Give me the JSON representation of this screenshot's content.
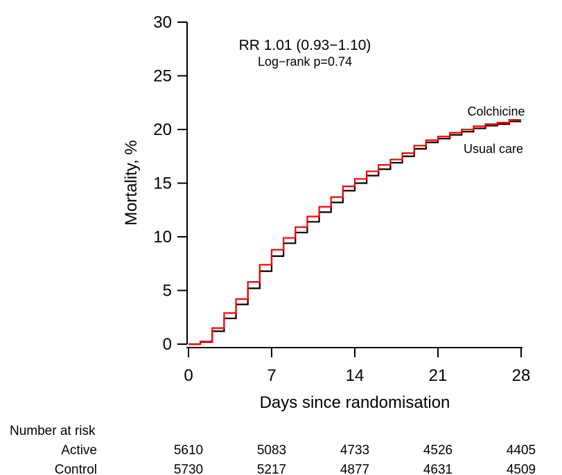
{
  "figure": {
    "background": "#ffffff",
    "accent_red": "#ff0000",
    "axis_color": "#000000"
  },
  "chart_data": {
    "type": "line",
    "subtype": "kaplan-meier-step",
    "title": "",
    "xlabel": "Days since randomisation",
    "ylabel": "Mortality, %",
    "xlim": [
      0,
      28
    ],
    "ylim": [
      0,
      30
    ],
    "x_ticks": [
      "0",
      "7",
      "14",
      "21",
      "28"
    ],
    "x_tick_values": [
      0,
      7,
      14,
      21,
      28
    ],
    "y_ticks": [
      "0",
      "5",
      "10",
      "15",
      "20",
      "25",
      "30"
    ],
    "y_tick_values": [
      0,
      5,
      10,
      15,
      20,
      25,
      30
    ],
    "grid": "off",
    "legend_position": "inline-right-of-curves",
    "annotations": {
      "line1": "RR 1.01 (0.93−1.10)",
      "line2": "Log−rank p=0.74"
    },
    "x": [
      0,
      1,
      2,
      3,
      4,
      5,
      6,
      7,
      8,
      9,
      10,
      11,
      12,
      13,
      14,
      15,
      16,
      17,
      18,
      19,
      20,
      21,
      22,
      23,
      24,
      25,
      26,
      27,
      28
    ],
    "series": [
      {
        "name": "Colchicine",
        "label": "Colchicine",
        "color": "#ff0000",
        "values": [
          0,
          0.25,
          1.5,
          2.9,
          4.2,
          5.8,
          7.4,
          8.8,
          9.9,
          10.9,
          11.9,
          12.8,
          13.7,
          14.7,
          15.4,
          16.1,
          16.7,
          17.2,
          17.8,
          18.5,
          19.0,
          19.35,
          19.7,
          20.0,
          20.3,
          20.5,
          20.65,
          20.9,
          20.9
        ]
      },
      {
        "name": "Usual care",
        "label": "Usual care",
        "color": "#000000",
        "values": [
          0,
          0.2,
          1.2,
          2.4,
          3.7,
          5.2,
          6.8,
          8.2,
          9.4,
          10.4,
          11.4,
          12.3,
          13.2,
          14.3,
          15.0,
          15.7,
          16.3,
          16.9,
          17.5,
          18.2,
          18.8,
          19.15,
          19.5,
          19.8,
          20.1,
          20.35,
          20.5,
          20.75,
          20.75
        ]
      }
    ]
  },
  "risk_table": {
    "title": "Number at risk",
    "days": [
      0,
      7,
      14,
      21,
      28
    ],
    "rows": [
      {
        "label": "Active",
        "color": "#ff0000",
        "values": [
          "5610",
          "5083",
          "4733",
          "4526",
          "4405"
        ]
      },
      {
        "label": "Control",
        "color": "#000000",
        "values": [
          "5730",
          "5217",
          "4877",
          "4631",
          "4509"
        ]
      }
    ]
  }
}
